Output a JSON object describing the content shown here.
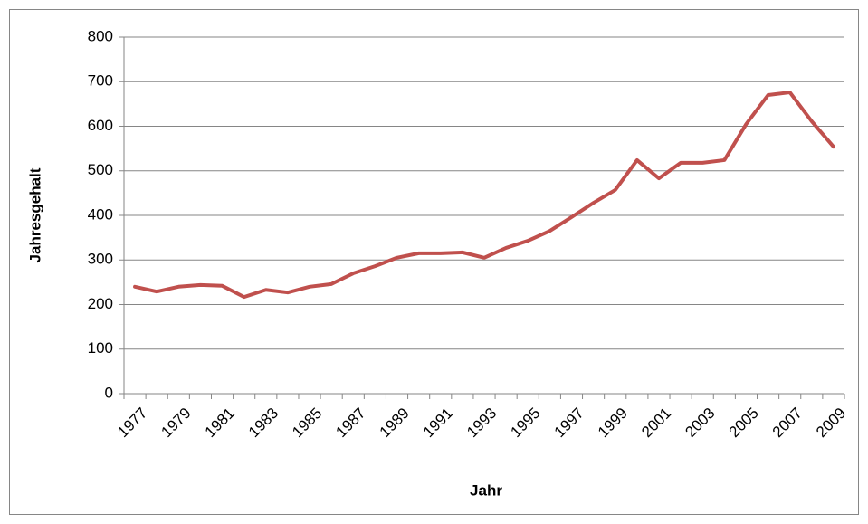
{
  "chart_data": {
    "type": "line",
    "x_label": "Jahr",
    "y_label": "Jahresgehalt",
    "categories": [
      "1977",
      null,
      "1979",
      null,
      "1981",
      null,
      "1983",
      null,
      "1985",
      null,
      "1987",
      null,
      "1989",
      null,
      "1991",
      null,
      "1993",
      null,
      "1995",
      null,
      "1997",
      null,
      "1999",
      null,
      "2001",
      null,
      "2003",
      null,
      "2005",
      null,
      "2007",
      null,
      "2009"
    ],
    "values": [
      240,
      229,
      240,
      244,
      242,
      217,
      233,
      227,
      240,
      246,
      270,
      286,
      305,
      315,
      315,
      317,
      305,
      327,
      343,
      365,
      396,
      428,
      457,
      524,
      483,
      518,
      518,
      524,
      605,
      670,
      676,
      611,
      554
    ],
    "color": "#c0504d",
    "ylim": [
      0,
      800
    ],
    "yticks": [
      0,
      100,
      200,
      300,
      400,
      500,
      600,
      700,
      800
    ],
    "grid": true
  }
}
